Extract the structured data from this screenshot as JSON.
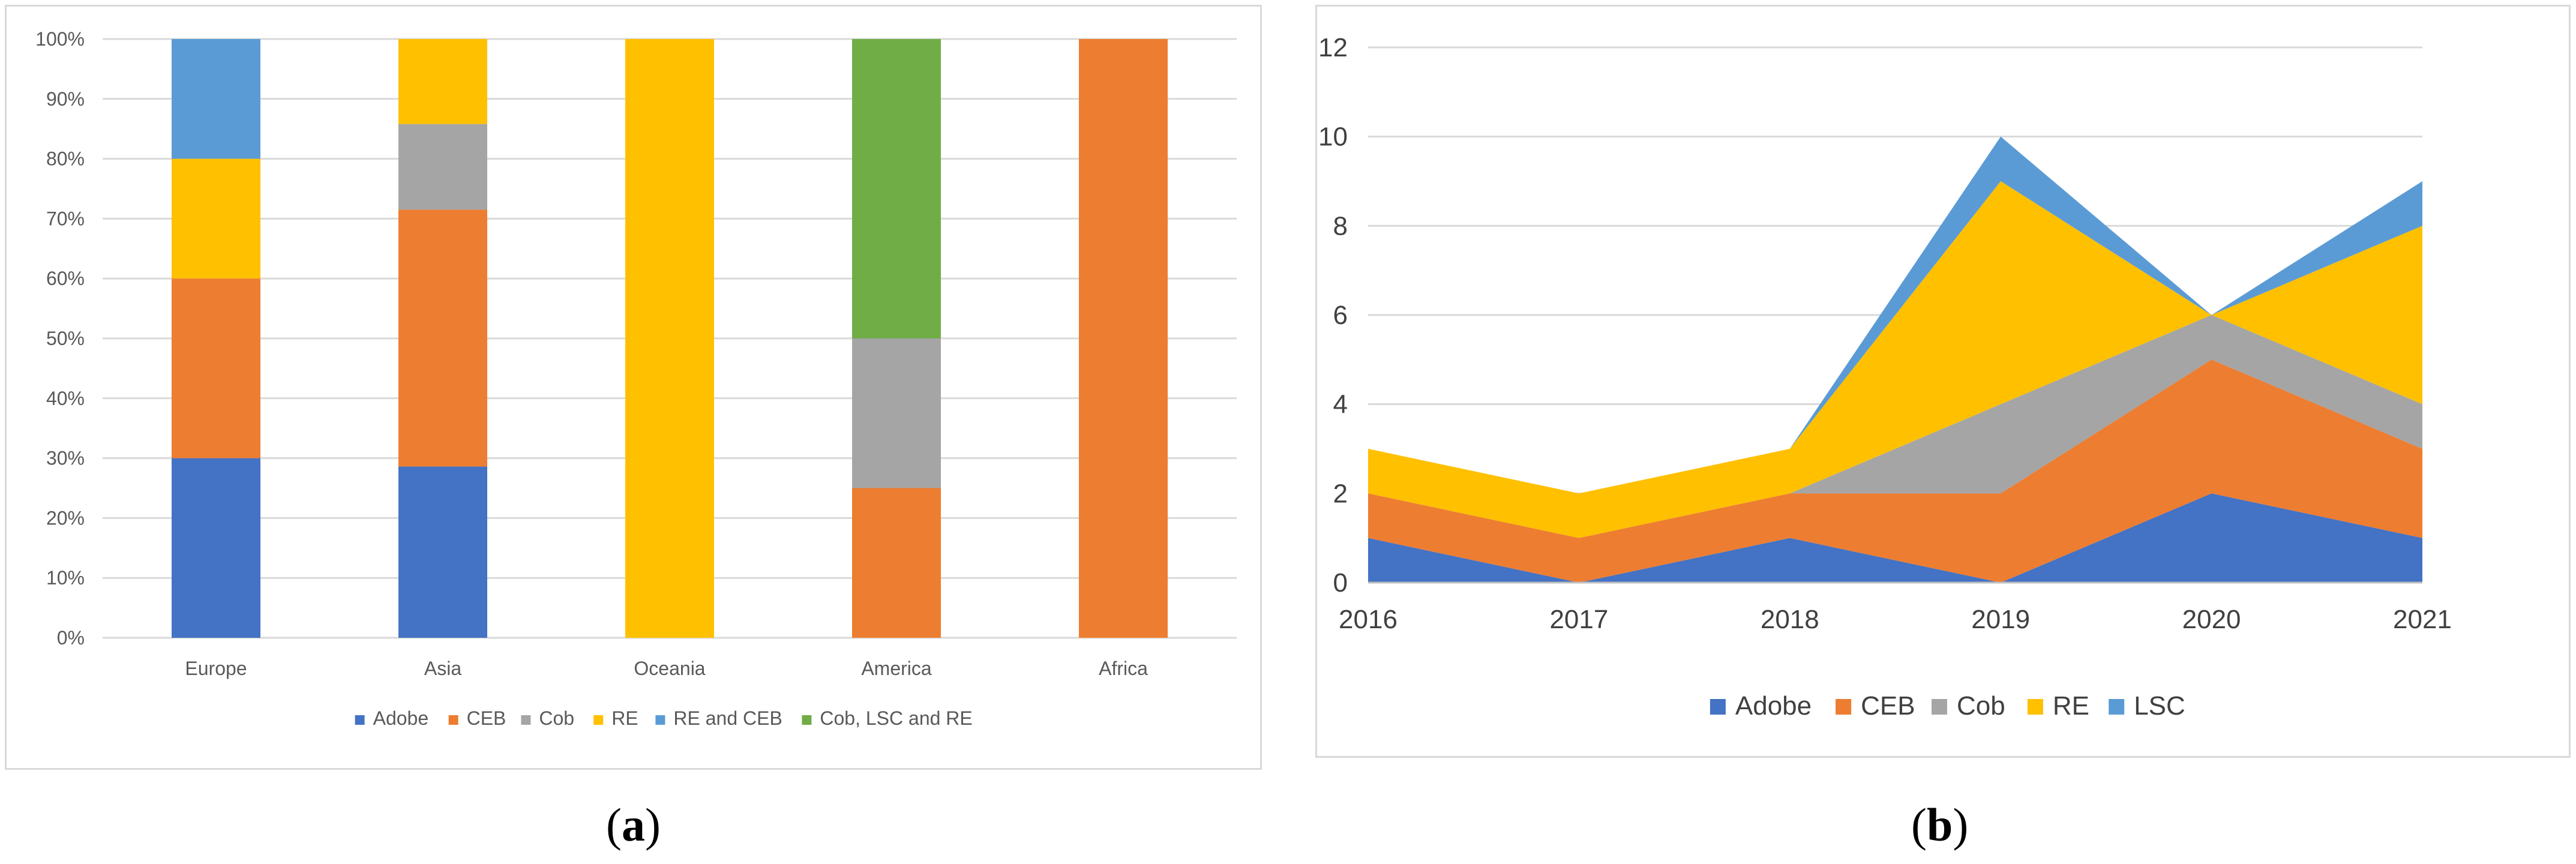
{
  "chart_data": [
    {
      "type": "bar",
      "stacked": "percent",
      "categories": [
        "Europe",
        "Asia",
        "Oceania",
        "America",
        "Africa"
      ],
      "series": [
        {
          "name": "Adobe",
          "color": "#4472c4",
          "values": [
            30,
            28.6,
            0,
            0,
            0
          ]
        },
        {
          "name": "CEB",
          "color": "#ed7d31",
          "values": [
            30,
            42.9,
            0,
            25,
            100
          ]
        },
        {
          "name": "Cob",
          "color": "#a5a5a5",
          "values": [
            0,
            14.3,
            0,
            25,
            0
          ]
        },
        {
          "name": "RE",
          "color": "#ffc000",
          "values": [
            20,
            14.2,
            100,
            0,
            0
          ]
        },
        {
          "name": "RE and CEB",
          "color": "#5b9bd5",
          "values": [
            20,
            0,
            0,
            0,
            0
          ]
        },
        {
          "name": "Cob, LSC and RE",
          "color": "#70ad47",
          "values": [
            0,
            0,
            0,
            50,
            0
          ]
        }
      ],
      "yticks": [
        "0%",
        "10%",
        "20%",
        "30%",
        "40%",
        "50%",
        "60%",
        "70%",
        "80%",
        "90%",
        "100%"
      ],
      "ylim": [
        0,
        100
      ],
      "grid": true,
      "legend": "bottom",
      "title": "",
      "xlabel": "",
      "ylabel": ""
    },
    {
      "type": "area",
      "stacked": true,
      "x": [
        "2016",
        "2017",
        "2018",
        "2019",
        "2020",
        "2021"
      ],
      "series": [
        {
          "name": "Adobe",
          "color": "#4472c4",
          "values": [
            1,
            0,
            1,
            0,
            2,
            1
          ]
        },
        {
          "name": "CEB",
          "color": "#ed7d31",
          "values": [
            1,
            1,
            1,
            2,
            3,
            2
          ]
        },
        {
          "name": "Cob",
          "color": "#a5a5a5",
          "values": [
            0,
            0,
            0,
            2,
            1,
            1
          ]
        },
        {
          "name": "RE",
          "color": "#ffc000",
          "values": [
            1,
            1,
            1,
            5,
            0,
            4
          ]
        },
        {
          "name": "LSC",
          "color": "#5b9bd5",
          "values": [
            0,
            0,
            0,
            1,
            0,
            1
          ]
        }
      ],
      "yticks": [
        "0",
        "2",
        "4",
        "6",
        "8",
        "10",
        "12"
      ],
      "ylim": [
        0,
        12
      ],
      "grid": true,
      "legend": "bottom",
      "title": "",
      "xlabel": "",
      "ylabel": ""
    }
  ],
  "captions": {
    "a": {
      "open": "(",
      "letter": "a",
      "close": ")"
    },
    "b": {
      "open": "(",
      "letter": "b",
      "close": ")"
    }
  }
}
